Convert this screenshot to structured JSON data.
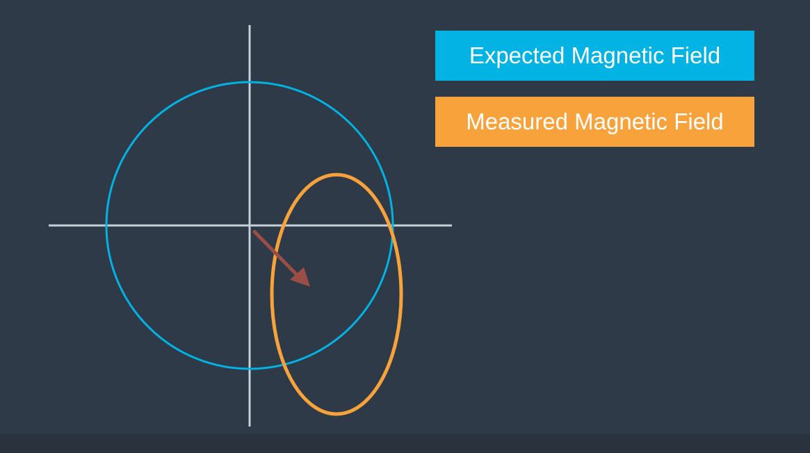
{
  "legend": {
    "expected": {
      "label": "Expected Magnetic Field",
      "color": "#02b3e4"
    },
    "measured": {
      "label": "Measured Magnetic Field",
      "color": "#f8a23b"
    }
  },
  "colors": {
    "background": "#2e3a47",
    "axes": "#c8d0d8",
    "arrow": "#9a4e45"
  },
  "icons": {
    "direction_arrow": "arrow-down-right-icon"
  }
}
